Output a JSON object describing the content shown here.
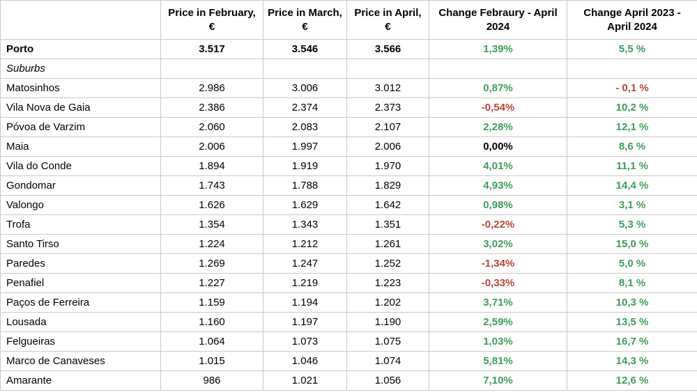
{
  "colors": {
    "positive": "#3f9c5c",
    "negative": "#b5463a",
    "neutral": "#000000",
    "border": "#c9c9c9",
    "background": "#ffffff"
  },
  "chart_data": {
    "type": "table",
    "columns": [
      "",
      "Price in February, €",
      "Price in March, €",
      "Price in April, €",
      "Change Febraury - April 2024",
      "Change April 2023 - April 2024"
    ],
    "rows": [
      {
        "label": "Porto",
        "emphasis": "bold",
        "price_feb": "3.517",
        "price_mar": "3.546",
        "price_apr": "3.566",
        "change_feb_apr": "1,39%",
        "change_feb_apr_trend": "positive",
        "change_apr_yoy": "5,5 %",
        "change_apr_yoy_trend": "positive"
      },
      {
        "label": "Suburbs",
        "emphasis": "italic",
        "price_feb": "",
        "price_mar": "",
        "price_apr": "",
        "change_feb_apr": "",
        "change_feb_apr_trend": "",
        "change_apr_yoy": "",
        "change_apr_yoy_trend": ""
      },
      {
        "label": "Matosinhos",
        "emphasis": "",
        "price_feb": "2.986",
        "price_mar": "3.006",
        "price_apr": "3.012",
        "change_feb_apr": "0,87%",
        "change_feb_apr_trend": "positive",
        "change_apr_yoy": "- 0,1 %",
        "change_apr_yoy_trend": "negative"
      },
      {
        "label": "Vila Nova de Gaia",
        "emphasis": "",
        "price_feb": "2.386",
        "price_mar": "2.374",
        "price_apr": "2.373",
        "change_feb_apr": "-0,54%",
        "change_feb_apr_trend": "negative",
        "change_apr_yoy": "10,2 %",
        "change_apr_yoy_trend": "positive"
      },
      {
        "label": "Póvoa de Varzim",
        "emphasis": "",
        "price_feb": "2.060",
        "price_mar": "2.083",
        "price_apr": "2.107",
        "change_feb_apr": "2,28%",
        "change_feb_apr_trend": "positive",
        "change_apr_yoy": "12,1 %",
        "change_apr_yoy_trend": "positive"
      },
      {
        "label": "Maia",
        "emphasis": "",
        "price_feb": "2.006",
        "price_mar": "1.997",
        "price_apr": "2.006",
        "change_feb_apr": "0,00%",
        "change_feb_apr_trend": "neutral",
        "change_apr_yoy": "8,6 %",
        "change_apr_yoy_trend": "positive"
      },
      {
        "label": "Vila do Conde",
        "emphasis": "",
        "price_feb": "1.894",
        "price_mar": "1.919",
        "price_apr": "1.970",
        "change_feb_apr": "4,01%",
        "change_feb_apr_trend": "positive",
        "change_apr_yoy": "11,1 %",
        "change_apr_yoy_trend": "positive"
      },
      {
        "label": "Gondomar",
        "emphasis": "",
        "price_feb": "1.743",
        "price_mar": "1.788",
        "price_apr": "1.829",
        "change_feb_apr": "4,93%",
        "change_feb_apr_trend": "positive",
        "change_apr_yoy": "14,4 %",
        "change_apr_yoy_trend": "positive"
      },
      {
        "label": "Valongo",
        "emphasis": "",
        "price_feb": "1.626",
        "price_mar": "1.629",
        "price_apr": "1.642",
        "change_feb_apr": "0,98%",
        "change_feb_apr_trend": "positive",
        "change_apr_yoy": "3,1 %",
        "change_apr_yoy_trend": "positive"
      },
      {
        "label": "Trofa",
        "emphasis": "",
        "price_feb": "1.354",
        "price_mar": "1.343",
        "price_apr": "1.351",
        "change_feb_apr": "-0,22%",
        "change_feb_apr_trend": "negative",
        "change_apr_yoy": "5,3 %",
        "change_apr_yoy_trend": "positive"
      },
      {
        "label": "Santo Tirso",
        "emphasis": "",
        "price_feb": "1.224",
        "price_mar": "1.212",
        "price_apr": "1.261",
        "change_feb_apr": "3,02%",
        "change_feb_apr_trend": "positive",
        "change_apr_yoy": "15,0 %",
        "change_apr_yoy_trend": "positive"
      },
      {
        "label": "Paredes",
        "emphasis": "",
        "price_feb": "1.269",
        "price_mar": "1.247",
        "price_apr": "1.252",
        "change_feb_apr": "-1,34%",
        "change_feb_apr_trend": "negative",
        "change_apr_yoy": "5,0 %",
        "change_apr_yoy_trend": "positive"
      },
      {
        "label": "Penafiel",
        "emphasis": "",
        "price_feb": "1.227",
        "price_mar": "1.219",
        "price_apr": "1.223",
        "change_feb_apr": "-0,33%",
        "change_feb_apr_trend": "negative",
        "change_apr_yoy": "8,1 %",
        "change_apr_yoy_trend": "positive"
      },
      {
        "label": "Paços de Ferreira",
        "emphasis": "",
        "price_feb": "1.159",
        "price_mar": "1.194",
        "price_apr": "1.202",
        "change_feb_apr": "3,71%",
        "change_feb_apr_trend": "positive",
        "change_apr_yoy": "10,3 %",
        "change_apr_yoy_trend": "positive"
      },
      {
        "label": "Lousada",
        "emphasis": "",
        "price_feb": "1.160",
        "price_mar": "1.197",
        "price_apr": "1.190",
        "change_feb_apr": "2,59%",
        "change_feb_apr_trend": "positive",
        "change_apr_yoy": "13,5 %",
        "change_apr_yoy_trend": "positive"
      },
      {
        "label": "Felgueiras",
        "emphasis": "",
        "price_feb": "1.064",
        "price_mar": "1.073",
        "price_apr": "1.075",
        "change_feb_apr": "1,03%",
        "change_feb_apr_trend": "positive",
        "change_apr_yoy": "16,7 %",
        "change_apr_yoy_trend": "positive"
      },
      {
        "label": "Marco de Canaveses",
        "emphasis": "",
        "price_feb": "1.015",
        "price_mar": "1.046",
        "price_apr": "1.074",
        "change_feb_apr": "5,81%",
        "change_feb_apr_trend": "positive",
        "change_apr_yoy": "14,3 %",
        "change_apr_yoy_trend": "positive"
      },
      {
        "label": "Amarante",
        "emphasis": "",
        "price_feb": "986",
        "price_mar": "1.021",
        "price_apr": "1.056",
        "change_feb_apr": "7,10%",
        "change_feb_apr_trend": "positive",
        "change_apr_yoy": "12,6 %",
        "change_apr_yoy_trend": "positive"
      }
    ]
  }
}
